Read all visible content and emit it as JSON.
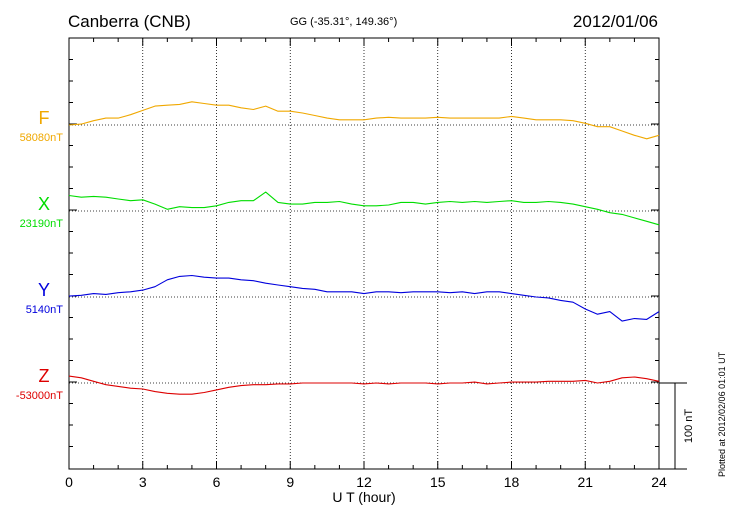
{
  "header": {
    "station": "Canberra (CNB)",
    "coords": "GG (-35.31°, 149.36°)",
    "date": "2012/01/06"
  },
  "footer": {
    "plotted": "Plotted at 2012/02/06 01:01  UT"
  },
  "chart_data": {
    "type": "line",
    "xlabel": "U T (hour)",
    "xlim": [
      0,
      24
    ],
    "xticks": [
      "0",
      "3",
      "6",
      "9",
      "12",
      "15",
      "18",
      "21",
      "24"
    ],
    "grid": true,
    "scale_bar": {
      "label": "100 nT",
      "value": 100
    },
    "series": [
      {
        "name": "F",
        "baseline_label": "58080nT",
        "baseline": 58080,
        "color": "#f0a800",
        "x": [
          0,
          0.5,
          1,
          1.5,
          2,
          2.5,
          3,
          3.5,
          4,
          4.5,
          5,
          5.5,
          6,
          6.5,
          7,
          7.5,
          8,
          8.5,
          9,
          9.5,
          10,
          10.5,
          11,
          11.5,
          12,
          12.5,
          13,
          13.5,
          14,
          14.5,
          15,
          15.5,
          16,
          16.5,
          17,
          17.5,
          18,
          18.5,
          19,
          19.5,
          20,
          20.5,
          21,
          21.5,
          22,
          22.5,
          23,
          23.5,
          24
        ],
        "y": [
          58080,
          58081,
          58085,
          58088,
          58088,
          58092,
          58097,
          58102,
          58103,
          58104,
          58107,
          58105,
          58103,
          58103,
          58100,
          58098,
          58102,
          58096,
          58096,
          58094,
          58091,
          58088,
          58086,
          58086,
          58086,
          58088,
          58089,
          58088,
          58088,
          58088,
          58089,
          58088,
          58088,
          58088,
          58088,
          58088,
          58090,
          58088,
          58086,
          58086,
          58086,
          58085,
          58082,
          58078,
          58078,
          58073,
          58068,
          58064,
          58068
        ]
      },
      {
        "name": "X",
        "baseline_label": "23190nT",
        "baseline": 23190,
        "color": "#00dd00",
        "x": [
          0,
          0.5,
          1,
          1.5,
          2,
          2.5,
          3,
          3.5,
          4,
          4.5,
          5,
          5.5,
          6,
          6.5,
          7,
          7.5,
          8,
          8.5,
          9,
          9.5,
          10,
          10.5,
          11,
          11.5,
          12,
          12.5,
          13,
          13.5,
          14,
          14.5,
          15,
          15.5,
          16,
          16.5,
          17,
          17.5,
          18,
          18.5,
          19,
          19.5,
          20,
          20.5,
          21,
          21.5,
          22,
          22.5,
          23,
          23.5,
          24
        ],
        "y": [
          23208,
          23206,
          23207,
          23206,
          23204,
          23202,
          23203,
          23198,
          23192,
          23195,
          23194,
          23194,
          23196,
          23200,
          23202,
          23202,
          23212,
          23200,
          23198,
          23198,
          23200,
          23200,
          23201,
          23198,
          23196,
          23196,
          23197,
          23200,
          23200,
          23198,
          23200,
          23201,
          23200,
          23201,
          23200,
          23201,
          23202,
          23200,
          23200,
          23201,
          23200,
          23198,
          23195,
          23192,
          23188,
          23186,
          23182,
          23178,
          23174
        ]
      },
      {
        "name": "Y",
        "baseline_label": "5140nT",
        "baseline": 5140,
        "color": "#0000dd",
        "x": [
          0,
          0.5,
          1,
          1.5,
          2,
          2.5,
          3,
          3.5,
          4,
          4.5,
          5,
          5.5,
          6,
          6.5,
          7,
          7.5,
          8,
          8.5,
          9,
          9.5,
          10,
          10.5,
          11,
          11.5,
          12,
          12.5,
          13,
          13.5,
          14,
          14.5,
          15,
          15.5,
          16,
          16.5,
          17,
          17.5,
          18,
          18.5,
          19,
          19.5,
          20,
          20.5,
          21,
          21.5,
          22,
          22.5,
          23,
          23.5,
          24
        ],
        "y": [
          5141,
          5142,
          5144,
          5143,
          5145,
          5146,
          5148,
          5152,
          5160,
          5164,
          5165,
          5163,
          5162,
          5162,
          5160,
          5159,
          5156,
          5154,
          5152,
          5150,
          5149,
          5146,
          5146,
          5146,
          5144,
          5146,
          5146,
          5145,
          5146,
          5146,
          5146,
          5145,
          5146,
          5144,
          5146,
          5146,
          5144,
          5142,
          5140,
          5139,
          5136,
          5134,
          5126,
          5120,
          5123,
          5112,
          5115,
          5114,
          5123
        ]
      },
      {
        "name": "Z",
        "baseline_label": "-53000nT",
        "baseline": -53000,
        "color": "#dd0000",
        "x": [
          0,
          0.5,
          1,
          1.5,
          2,
          2.5,
          3,
          3.5,
          4,
          4.5,
          5,
          5.5,
          6,
          6.5,
          7,
          7.5,
          8,
          8.5,
          9,
          9.5,
          10,
          10.5,
          11,
          11.5,
          12,
          12.5,
          13,
          13.5,
          14,
          14.5,
          15,
          15.5,
          16,
          16.5,
          17,
          17.5,
          18,
          18.5,
          19,
          19.5,
          20,
          20.5,
          21,
          21.5,
          22,
          22.5,
          23,
          23.5,
          24
        ],
        "y": [
          -52992,
          -52994,
          -52998,
          -53002,
          -53004,
          -53006,
          -53007,
          -53010,
          -53012,
          -53013,
          -53013,
          -53011,
          -53008,
          -53005,
          -53003,
          -53002,
          -53002,
          -53001,
          -53001,
          -53000,
          -53000,
          -53000,
          -53000,
          -53000,
          -53001,
          -53000,
          -53001,
          -53000,
          -53000,
          -53000,
          -53001,
          -53000,
          -53000,
          -52999,
          -53001,
          -53000,
          -52999,
          -52999,
          -52999,
          -52998,
          -52998,
          -52998,
          -52997,
          -53000,
          -52998,
          -52994,
          -52993,
          -52995,
          -52998
        ]
      }
    ]
  }
}
